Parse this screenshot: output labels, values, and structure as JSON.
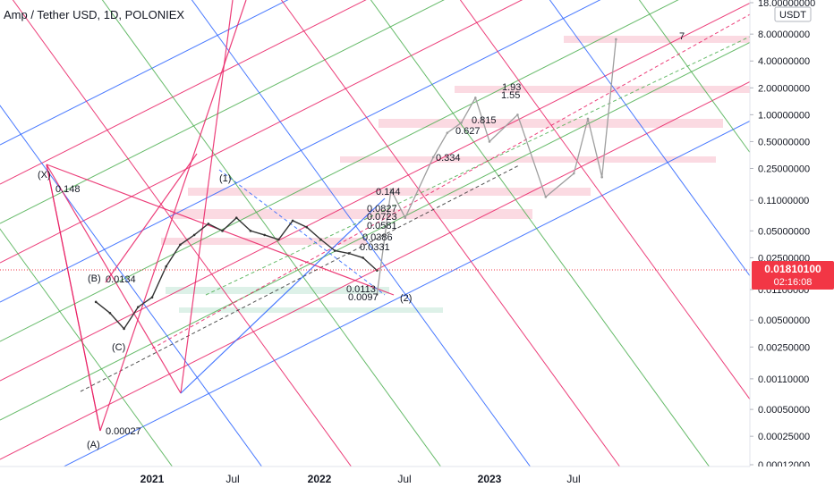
{
  "header": {
    "title": "Amp / Tether USD, 1D, POLONIEX"
  },
  "price_axis": {
    "unit_badge": "USDT",
    "current_price": "0.01810100",
    "countdown": "02:16:08",
    "tick_labels": [
      "18.00000000",
      "8.00000000",
      "4.00000000",
      "2.00000000",
      "1.00000000",
      "0.50000000",
      "0.25000000",
      "0.11000000",
      "0.05000000",
      "0.02500000",
      "0.01100000",
      "0.00500000",
      "0.00250000",
      "0.00110000",
      "0.00050000",
      "0.00025000",
      "0.00012000"
    ],
    "current_price_color": "#f23645"
  },
  "time_axis": {
    "tick_labels": [
      "2021",
      "Jul",
      "2022",
      "Jul",
      "2023",
      "Jul"
    ]
  },
  "annotations": {
    "wave_labels": [
      "(X)",
      "(B)",
      "(C)",
      "(A)",
      "(1)",
      "(2)",
      "7"
    ],
    "level_labels": [
      "0.148",
      "0.0134",
      "0.00027",
      "0.144",
      "0.0827",
      "0.0723",
      "0.0581",
      "0.0386",
      "0.0331",
      "0.0113",
      "0.0097",
      "0.334",
      "0.627",
      "0.815",
      "1.55",
      "1.93"
    ]
  },
  "chart_data": {
    "type": "line",
    "title": "Amp / Tether USD, 1D, POLONIEX",
    "xlabel": "",
    "ylabel": "",
    "y_scale": "log",
    "ylim": [
      0.00012,
      18
    ],
    "x_ticks": [
      "2021",
      "Jul",
      "2022",
      "Jul",
      "2023",
      "Jul"
    ],
    "y_ticks": [
      18,
      8,
      4,
      2,
      1,
      0.5,
      0.25,
      0.11,
      0.05,
      0.025,
      0.011,
      0.005,
      0.0025,
      0.0011,
      0.0005,
      0.00025,
      0.00012
    ],
    "grid": false,
    "last_price": 0.018101,
    "series": [
      {
        "name": "",
        "color": "#333333",
        "x": [
          "2020-09",
          "2020-10",
          "2020-11",
          "2020-12",
          "2021-01",
          "2021-02",
          "2021-03",
          "2021-04",
          "2021-05",
          "2021-06",
          "2021-07",
          "2021-08",
          "2021-09",
          "2021-10",
          "2021-11",
          "2021-12",
          "2022-01",
          "2022-02",
          "2022-03",
          "2022-04",
          "2022-05"
        ],
        "values": [
          0.008,
          0.006,
          0.004,
          0.007,
          0.009,
          0.02,
          0.035,
          0.045,
          0.06,
          0.05,
          0.07,
          0.05,
          0.045,
          0.04,
          0.065,
          0.055,
          0.04,
          0.03,
          0.028,
          0.025,
          0.018
        ]
      },
      {
        "name": "",
        "color": "#9e9e9e",
        "x": [
          "2022-05",
          "2022-06",
          "2022-07",
          "2022-09",
          "2022-10",
          "2022-11",
          "2022-12",
          "2023-01",
          "2023-03",
          "2023-05",
          "2023-07",
          "2023-08",
          "2023-09",
          "2023-10"
        ],
        "values": [
          0.0097,
          0.144,
          0.07,
          0.334,
          0.627,
          0.815,
          1.55,
          0.5,
          1.0,
          0.12,
          0.22,
          0.9,
          0.2,
          7
        ]
      }
    ]
  }
}
